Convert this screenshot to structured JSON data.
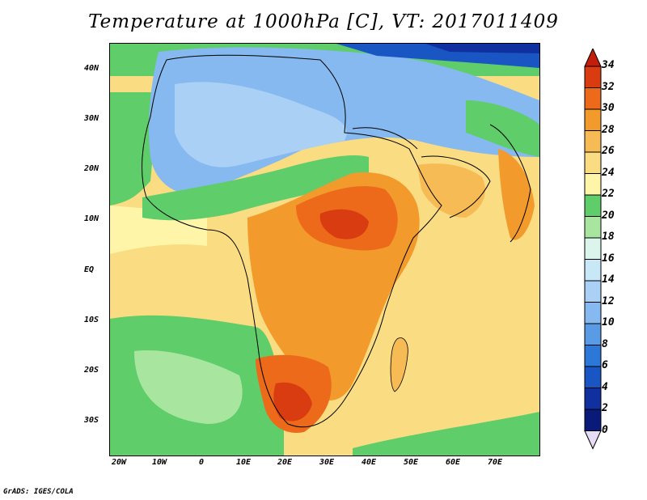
{
  "title": "Temperature at 1000hPa [C], VT: 2017011409",
  "footer": "GrADS: IGES/COLA",
  "map": {
    "lon_range": [
      -25,
      80
    ],
    "lat_range": [
      -37,
      45
    ],
    "lat_ticks": [
      "40N",
      "30N",
      "20N",
      "10N",
      "EQ",
      "10S",
      "20S",
      "30S"
    ],
    "lon_ticks": [
      "20W",
      "10W",
      "0",
      "10E",
      "20E",
      "30E",
      "40E",
      "50E",
      "60E",
      "70E"
    ]
  },
  "colorbar": {
    "labels": [
      "34",
      "32",
      "30",
      "28",
      "26",
      "24",
      "22",
      "20",
      "18",
      "16",
      "14",
      "12",
      "10",
      "8",
      "6",
      "4",
      "2",
      "0"
    ],
    "colors": {
      "below_0": "#e6dcf5",
      "0_2": "#0a1a78",
      "2_4": "#10309f",
      "4_6": "#1a55c4",
      "6_8": "#2c78d8",
      "8_10": "#5a9be5",
      "10_12": "#86b9ef",
      "12_14": "#aad1f5",
      "14_16": "#c8e8f7",
      "16_18": "#dcf5ec",
      "18_20": "#a8e6a0",
      "20_22": "#5fcd6a",
      "22_24": "#fff5a8",
      "24_26": "#fadc82",
      "26_28": "#f7bb55",
      "28_30": "#f39a2c",
      "30_32": "#ec6a19",
      "32_34": "#d93c10",
      "above_34": "#c41e0a"
    }
  }
}
